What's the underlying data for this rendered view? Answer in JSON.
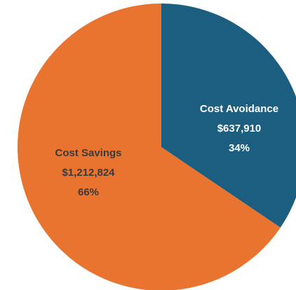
{
  "chart_data": {
    "type": "pie",
    "categories": [
      "Cost Avoidance",
      "Cost Savings"
    ],
    "values": [
      637910,
      1212824
    ],
    "value_labels": [
      "$637,910",
      "$1,212,824"
    ],
    "percent_labels": [
      "34%",
      "66%"
    ],
    "colors": [
      "#1b5e80",
      "#e8742f"
    ]
  }
}
